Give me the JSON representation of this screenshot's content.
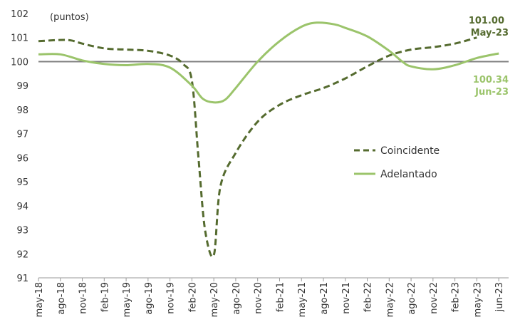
{
  "chart_data": {
    "type": "line",
    "unit_label": "(puntos)",
    "ylim": [
      91,
      102
    ],
    "yticks": [
      91,
      92,
      93,
      94,
      95,
      96,
      97,
      98,
      99,
      100,
      101,
      102
    ],
    "reference_line": 100,
    "x": [
      "may-18",
      "ago-18",
      "nov-18",
      "feb-19",
      "may-19",
      "ago-19",
      "nov-19",
      "feb-20",
      "may-20",
      "ago-20",
      "nov-20",
      "feb-21",
      "may-21",
      "ago-21",
      "nov-21",
      "feb-22",
      "may-22",
      "ago-22",
      "nov-22",
      "feb-23",
      "may-23",
      "jun-23"
    ],
    "legend_position": "center-right",
    "series": [
      {
        "name": "Coincidente",
        "style": "dashed",
        "color": "#556b2f",
        "points": [
          {
            "x": 0,
            "y": 100.85
          },
          {
            "x": 1,
            "y": 100.9
          },
          {
            "x": 1.5,
            "y": 100.88
          },
          {
            "x": 2,
            "y": 100.75
          },
          {
            "x": 3,
            "y": 100.55
          },
          {
            "x": 4,
            "y": 100.5
          },
          {
            "x": 5,
            "y": 100.45
          },
          {
            "x": 6,
            "y": 100.25
          },
          {
            "x": 6.6,
            "y": 99.9
          },
          {
            "x": 7,
            "y": 99.2
          },
          {
            "x": 7.3,
            "y": 96.0
          },
          {
            "x": 7.6,
            "y": 93.0
          },
          {
            "x": 8,
            "y": 91.95
          },
          {
            "x": 8.3,
            "y": 94.8
          },
          {
            "x": 9,
            "y": 96.2
          },
          {
            "x": 10,
            "y": 97.5
          },
          {
            "x": 11,
            "y": 98.2
          },
          {
            "x": 12,
            "y": 98.6
          },
          {
            "x": 13,
            "y": 98.9
          },
          {
            "x": 14,
            "y": 99.3
          },
          {
            "x": 15,
            "y": 99.8
          },
          {
            "x": 16,
            "y": 100.25
          },
          {
            "x": 17,
            "y": 100.5
          },
          {
            "x": 18,
            "y": 100.6
          },
          {
            "x": 19,
            "y": 100.75
          },
          {
            "x": 20,
            "y": 101.0
          }
        ]
      },
      {
        "name": "Adelantado",
        "style": "solid",
        "color": "#9bc46b",
        "points": [
          {
            "x": 0,
            "y": 100.3
          },
          {
            "x": 1,
            "y": 100.3
          },
          {
            "x": 2,
            "y": 100.05
          },
          {
            "x": 3,
            "y": 99.9
          },
          {
            "x": 4,
            "y": 99.85
          },
          {
            "x": 5,
            "y": 99.9
          },
          {
            "x": 6,
            "y": 99.75
          },
          {
            "x": 7,
            "y": 99.0
          },
          {
            "x": 7.5,
            "y": 98.45
          },
          {
            "x": 8,
            "y": 98.3
          },
          {
            "x": 8.5,
            "y": 98.4
          },
          {
            "x": 9,
            "y": 98.9
          },
          {
            "x": 10,
            "y": 100.0
          },
          {
            "x": 11,
            "y": 100.85
          },
          {
            "x": 12,
            "y": 101.45
          },
          {
            "x": 12.7,
            "y": 101.62
          },
          {
            "x": 13.5,
            "y": 101.55
          },
          {
            "x": 14,
            "y": 101.4
          },
          {
            "x": 15,
            "y": 101.05
          },
          {
            "x": 16,
            "y": 100.45
          },
          {
            "x": 16.6,
            "y": 100.0
          },
          {
            "x": 17,
            "y": 99.8
          },
          {
            "x": 18,
            "y": 99.68
          },
          {
            "x": 19,
            "y": 99.85
          },
          {
            "x": 20,
            "y": 100.15
          },
          {
            "x": 21,
            "y": 100.34
          }
        ]
      }
    ],
    "annotations": [
      {
        "series": "Coincidente",
        "value_text": "101.00",
        "date_text": "May-23"
      },
      {
        "series": "Adelantado",
        "value_text": "100.34",
        "date_text": "Jun-23"
      }
    ]
  }
}
